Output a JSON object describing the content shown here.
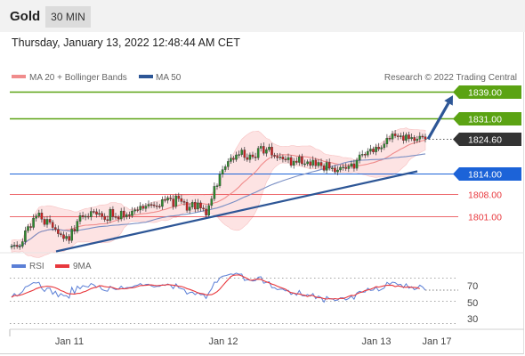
{
  "header": {
    "symbol": "Gold",
    "timeframe": "30 MIN",
    "datetime": "Thursday, January 13, 2022 12:48:44 AM CET"
  },
  "legend": {
    "ma20_label": "MA 20 + Bollinger Bands",
    "ma50_label": "MA 50",
    "credit": "Research © 2022 Trading Central"
  },
  "colors": {
    "green": "#5ba313",
    "blue": "#1c63d8",
    "red": "#e8383d",
    "current": "#333333",
    "trend": "#2d5696",
    "ma20": "#f08c8c",
    "ma50": "#7a8fc4",
    "band": "#fde0e0",
    "candle_up": "#2e8b2e",
    "candle_down": "#cc2222",
    "rsi": "#5b7fd6",
    "rsi_ma": "#e8383d"
  },
  "chart_data": [
    {
      "type": "candlestick",
      "instrument": "Gold",
      "timeframe": "30 MIN",
      "x_labels": [
        "Jan 11",
        "Jan 12",
        "Jan 13",
        "Jan 17"
      ],
      "ylim": [
        1790,
        1845
      ],
      "close_series": [
        1792.0,
        1792.3,
        1791.9,
        1792.0,
        1793.4,
        1796.7,
        1798.0,
        1797.7,
        1800.5,
        1801.2,
        1802.1,
        1800.2,
        1798.6,
        1800.2,
        1799.3,
        1797.7,
        1797.1,
        1795.8,
        1795.5,
        1794.3,
        1795.0,
        1793.7,
        1797.2,
        1796.6,
        1799.6,
        1801.3,
        1800.9,
        1801.1,
        1800.9,
        1802.6,
        1802.5,
        1801.7,
        1802.0,
        1801.1,
        1800.1,
        1799.8,
        1803.2,
        1801.0,
        1800.8,
        1800.3,
        1802.7,
        1800.9,
        1801.6,
        1801.3,
        1802.7,
        1803.1,
        1803.0,
        1804.2,
        1803.5,
        1804.2,
        1804.7,
        1804.6,
        1804.3,
        1804.2,
        1804.1,
        1806.2,
        1806.0,
        1806.7,
        1806.4,
        1804.1,
        1807.3,
        1806.5,
        1805.6,
        1805.4,
        1802.9,
        1803.9,
        1805.4,
        1803.3,
        1805.2,
        1803.6,
        1803.3,
        1801.4,
        1804.4,
        1806.4,
        1810.2,
        1810.4,
        1813.9,
        1815.3,
        1816.2,
        1817.8,
        1818.8,
        1818.4,
        1819.8,
        1819.9,
        1821.3,
        1819.0,
        1818.4,
        1819.8,
        1819.2,
        1818.9,
        1821.8,
        1822.4,
        1820.3,
        1821.4,
        1822.2,
        1819.7,
        1819.4,
        1818.9,
        1819.2,
        1818.5,
        1818.3,
        1819.0,
        1816.6,
        1817.9,
        1817.5,
        1819.2,
        1817.1,
        1817.1,
        1817.7,
        1816.6,
        1818.2,
        1816.5,
        1817.5,
        1816.5,
        1815.1,
        1817.5,
        1815.7,
        1815.8,
        1814.6,
        1815.2,
        1816.0,
        1816.1,
        1815.6,
        1816.3,
        1817.1,
        1815.7,
        1818.2,
        1819.8,
        1820.0,
        1819.8,
        1820.9,
        1821.6,
        1820.7,
        1822.2,
        1821.6,
        1822.0,
        1823.1,
        1824.9,
        1824.6,
        1826.2,
        1825.6,
        1825.3,
        1825.6,
        1824.2,
        1825.9,
        1824.7,
        1825.1,
        1824.1,
        1824.6,
        1825.5,
        1825.3,
        1824.6
      ],
      "price_levels": [
        {
          "label": "1839.00",
          "value": 1839.0,
          "kind": "resistance",
          "color": "#5ba313"
        },
        {
          "label": "1831.00",
          "value": 1831.0,
          "kind": "resistance",
          "color": "#5ba313"
        },
        {
          "label": "1824.60",
          "value": 1824.6,
          "kind": "current",
          "color": "#333333"
        },
        {
          "label": "1814.00",
          "value": 1814.0,
          "kind": "pivot",
          "color": "#1c63d8"
        },
        {
          "label": "1808.00",
          "value": 1808.0,
          "kind": "support",
          "color": "#e8383d"
        },
        {
          "label": "1801.00",
          "value": 1801.0,
          "kind": "support",
          "color": "#e8383d"
        }
      ],
      "trendline": {
        "from": [
          "Jan 11",
          1790.4
        ],
        "to": [
          "Jan 13",
          1814.8
        ]
      },
      "target_arrow": {
        "from": 1824.6,
        "to": 1839.0
      },
      "indicators": [
        "MA 20 + Bollinger Bands",
        "MA 50"
      ]
    },
    {
      "type": "line",
      "title": "RSI",
      "series": [
        {
          "name": "RSI"
        },
        {
          "name": "9MA"
        }
      ],
      "ylim": [
        25,
        75
      ],
      "y_ticks": [
        70,
        50,
        30
      ],
      "rsi_values": [
        52.8,
        56.0,
        53.8,
        55.8,
        57.8,
        62.0,
        62.8,
        64.4,
        65.9,
        65.5,
        66.1,
        60.6,
        57.9,
        61.0,
        60.8,
        55.5,
        58.1,
        53.2,
        56.0,
        54.1,
        54.1,
        52.0,
        61.6,
        56.3,
        62.7,
        60.3,
        63.2,
        62.4,
        61.9,
        65.0,
        63.8,
        61.7,
        62.9,
        59.7,
        58.7,
        58.2,
        62.6,
        60.8,
        59.6,
        60.0,
        62.6,
        60.2,
        61.4,
        61.5,
        61.8,
        63.1,
        63.6,
        65.0,
        63.2,
        64.2,
        64.4,
        62.9,
        61.9,
        62.5,
        62.5,
        64.0,
        63.3,
        64.6,
        63.6,
        60.5,
        64.8,
        61.3,
        60.4,
        59.8,
        55.6,
        57.0,
        57.4,
        55.1,
        57.1,
        55.0,
        55.3,
        51.7,
        56.8,
        60.2,
        66.3,
        66.1,
        70.0,
        71.5,
        72.0,
        72.7,
        73.6,
        73.0,
        74.3,
        73.3,
        73.5,
        67.8,
        68.4,
        68.1,
        67.3,
        67.6,
        70.6,
        71.1,
        65.3,
        66.0,
        66.6,
        61.3,
        61.3,
        59.5,
        60.0,
        60.0,
        58.4,
        59.0,
        55.3,
        56.7,
        54.6,
        58.8,
        54.3,
        54.0,
        55.2,
        53.7,
        56.1,
        51.5,
        53.9,
        52.4,
        48.4,
        53.4,
        51.3,
        51.5,
        49.9,
        50.3,
        52.3,
        52.3,
        50.4,
        51.6,
        53.9,
        51.0,
        56.6,
        58.1,
        57.4,
        57.5,
        60.9,
        58.8,
        59.2,
        62.0,
        58.4,
        59.8,
        61.0,
        66.1,
        64.3,
        66.3,
        65.8,
        63.9,
        64.4,
        61.3,
        64.8,
        60.9,
        62.2,
        59.5,
        60.6,
        63.6,
        62.0,
        59.1
      ],
      "rsi_ma_values": [
        52.8,
        54.4,
        54.2,
        54.6,
        55.2,
        56.3,
        57.2,
        58.2,
        59.1,
        60.5,
        61.3,
        62.0,
        62.3,
        62.7,
        62.4,
        62.0,
        61.2,
        60.1,
        58.7,
        57.9,
        56.6,
        55.8,
        55.8,
        55.6,
        56.2,
        56.3,
        57.4,
        58.0,
        59.2,
        60.5,
        61.3,
        61.7,
        63.0,
        62.9,
        62.2,
        61.9,
        61.9,
        61.4,
        60.5,
        60.0,
        60.3,
        60.4,
        60.5,
        61.0,
        61.1,
        61.7,
        62.4,
        63.2,
        63.3,
        63.4,
        63.7,
        63.8,
        63.4,
        63.1,
        63.3,
        63.6,
        63.7,
        64.1,
        63.8,
        63.6,
        63.2,
        62.6,
        62.4,
        61.6,
        60.5,
        59.8,
        58.9,
        57.9,
        56.7,
        56.2,
        55.8,
        54.9,
        55.0,
        55.1,
        56.3,
        57.8,
        60.0,
        62.9,
        65.8,
        68.5,
        71.3,
        72.4,
        72.6,
        72.7,
        71.8,
        70.6,
        69.5,
        68.1,
        68.0,
        68.7,
        68.9,
        68.7,
        67.5,
        66.5,
        65.6,
        64.5,
        63.8,
        62.6,
        61.7,
        60.8,
        59.9,
        58.1,
        57.0,
        56.4,
        55.9,
        55.7,
        55.0,
        54.5,
        53.3,
        54.5,
        54.3,
        53.0,
        52.5,
        52.3,
        51.5,
        51.2,
        51.6,
        51.2,
        51.6,
        51.2,
        51.8,
        51.7,
        52.5,
        53.6,
        54.5,
        54.2,
        55.8,
        56.8,
        57.5,
        58.8,
        59.3,
        59.9,
        60.9,
        62.2,
        61.8,
        62.5,
        63.0,
        63.4,
        63.6,
        63.4,
        62.3,
        62.9,
        62.5,
        61.8,
        61.7,
        62.1,
        61.6,
        61.6,
        61.3,
        60.4
      ]
    }
  ],
  "rsi_legend": {
    "rsi_label": "RSI",
    "ma_label": "9MA"
  },
  "rsi_ticks": [
    "70",
    "50",
    "30"
  ],
  "x_ticks": [
    "Jan 11",
    "Jan 12",
    "Jan 13",
    "Jan 17"
  ]
}
